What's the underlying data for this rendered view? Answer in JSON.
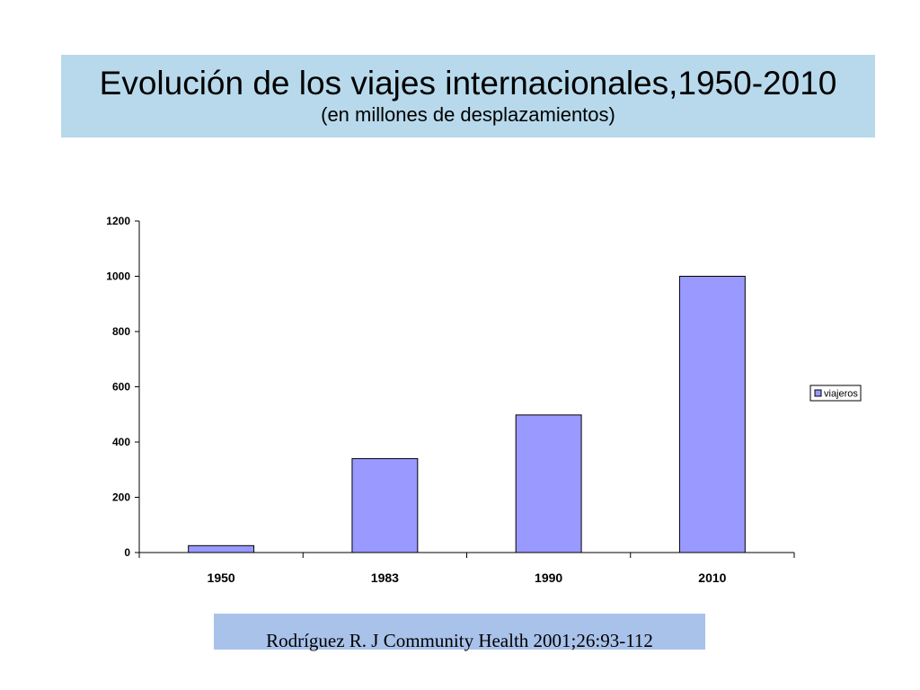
{
  "header": {
    "title": "Evolución de los viajes internacionales,1950-2010",
    "subtitle": "(en millones de desplazamientos)"
  },
  "citation": "Rodríguez R. J Community Health 2001;26:93-112",
  "chart_data": {
    "type": "bar",
    "categories": [
      "1950",
      "1983",
      "1990",
      "2010"
    ],
    "series": [
      {
        "name": "viajeros",
        "values": [
          25,
          340,
          498,
          1000
        ],
        "color": "#9999ff"
      }
    ],
    "y_ticks": [
      "0",
      "200",
      "400",
      "600",
      "800",
      "1000",
      "1200"
    ],
    "ylim": [
      0,
      1200
    ],
    "grid": false,
    "legend": {
      "position": "right",
      "entries": [
        "viajeros"
      ]
    }
  }
}
